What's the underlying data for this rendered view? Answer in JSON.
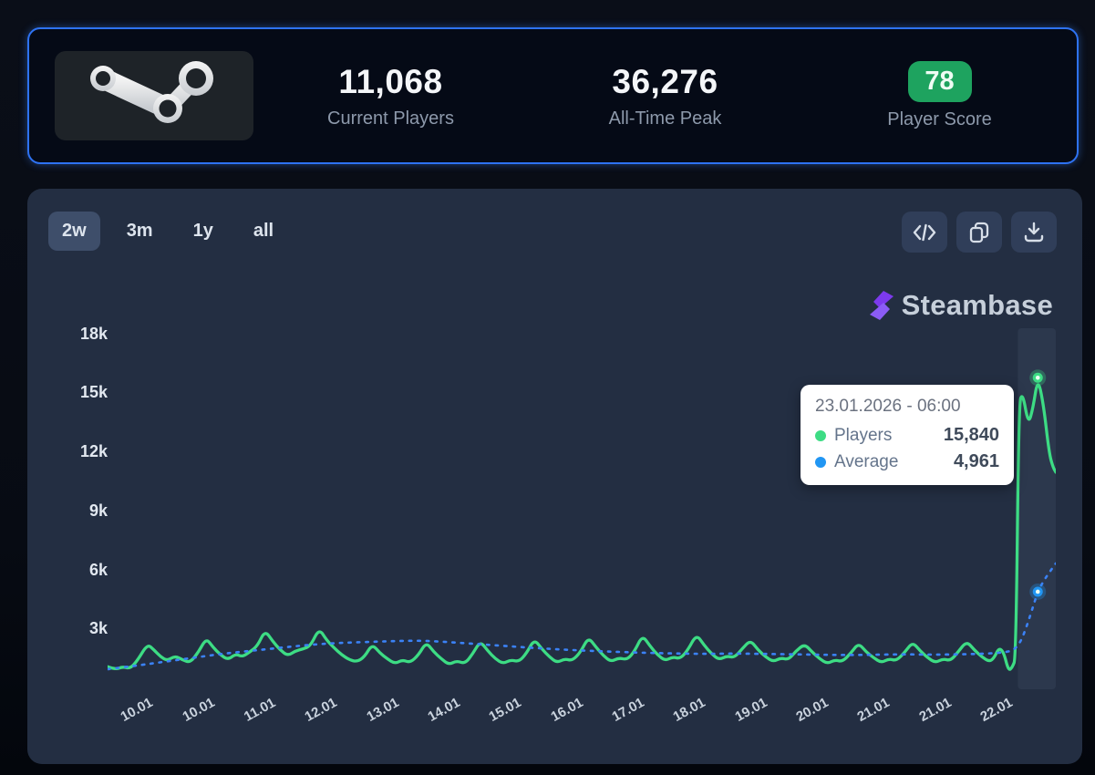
{
  "header": {
    "current_players": "11,068",
    "current_players_label": "Current Players",
    "all_time_peak": "36,276",
    "all_time_peak_label": "All-Time Peak",
    "player_score": "78",
    "player_score_label": "Player Score",
    "score_color": "#1ea35f"
  },
  "toolbar": {
    "ranges": [
      "2w",
      "3m",
      "1y",
      "all"
    ],
    "active_range": "2w",
    "icon_buttons": [
      "embed-code",
      "copy",
      "download"
    ]
  },
  "branding": {
    "logo_text": "Steambase",
    "logo_color": "#7c3aed"
  },
  "tooltip": {
    "date": "23.01.2026 - 06:00",
    "rows": [
      {
        "label": "Players",
        "value": "15,840",
        "color": "#3ddc84"
      },
      {
        "label": "Average",
        "value": "4,961",
        "color": "#2196f3"
      }
    ]
  },
  "chart_data": {
    "type": "line",
    "title": "",
    "xlabel": "",
    "ylabel": "",
    "ylim": [
      0,
      18000
    ],
    "grid": false,
    "legend": "tooltip-only",
    "y_ticks": [
      {
        "label": "18k",
        "value": 18000
      },
      {
        "label": "15k",
        "value": 15000
      },
      {
        "label": "12k",
        "value": 12000
      },
      {
        "label": "9k",
        "value": 9000
      },
      {
        "label": "6k",
        "value": 6000
      },
      {
        "label": "3k",
        "value": 3000
      }
    ],
    "x_ticks": [
      "10.01",
      "10.01",
      "11.01",
      "12.01",
      "13.01",
      "14.01",
      "15.01",
      "16.01",
      "17.01",
      "18.01",
      "19.01",
      "20.01",
      "21.01",
      "21.01",
      "22.01"
    ],
    "hover_band": {
      "from_pct": 96,
      "to_pct": 100
    },
    "hover_markers": [
      {
        "series": "Players",
        "x_pct": 98.1,
        "value": 15840,
        "color": "#3ddc84"
      },
      {
        "series": "Average",
        "x_pct": 98.1,
        "value": 4961,
        "color": "#2196f3"
      }
    ],
    "series": [
      {
        "name": "Players",
        "color": "#3ddc84",
        "style": "solid",
        "points": [
          [
            0,
            1150
          ],
          [
            0.8,
            1000
          ],
          [
            1.6,
            1150
          ],
          [
            2.4,
            1050
          ],
          [
            3.2,
            1500
          ],
          [
            4.2,
            2300
          ],
          [
            4.9,
            2000
          ],
          [
            5.6,
            1650
          ],
          [
            6.3,
            1450
          ],
          [
            7.1,
            1700
          ],
          [
            7.9,
            1500
          ],
          [
            8.7,
            1350
          ],
          [
            9.6,
            1900
          ],
          [
            10.4,
            2600
          ],
          [
            11.1,
            2150
          ],
          [
            11.9,
            1750
          ],
          [
            12.7,
            1500
          ],
          [
            13.5,
            1800
          ],
          [
            14.2,
            1650
          ],
          [
            15.0,
            1900
          ],
          [
            15.8,
            2200
          ],
          [
            16.6,
            3000
          ],
          [
            17.4,
            2450
          ],
          [
            18.2,
            2000
          ],
          [
            19.0,
            1700
          ],
          [
            19.8,
            1950
          ],
          [
            20.6,
            2050
          ],
          [
            21.4,
            2200
          ],
          [
            22.3,
            3100
          ],
          [
            23.1,
            2500
          ],
          [
            23.9,
            2100
          ],
          [
            24.7,
            1750
          ],
          [
            25.5,
            1500
          ],
          [
            26.3,
            1400
          ],
          [
            27.1,
            1650
          ],
          [
            27.9,
            2300
          ],
          [
            28.7,
            1850
          ],
          [
            29.5,
            1550
          ],
          [
            30.3,
            1300
          ],
          [
            31.1,
            1500
          ],
          [
            31.9,
            1350
          ],
          [
            32.8,
            1750
          ],
          [
            33.6,
            2400
          ],
          [
            34.4,
            1900
          ],
          [
            35.2,
            1550
          ],
          [
            36.0,
            1250
          ],
          [
            36.8,
            1450
          ],
          [
            37.7,
            1300
          ],
          [
            38.5,
            1800
          ],
          [
            39.3,
            2450
          ],
          [
            40.1,
            1950
          ],
          [
            40.9,
            1550
          ],
          [
            41.7,
            1300
          ],
          [
            42.5,
            1500
          ],
          [
            43.4,
            1400
          ],
          [
            44.2,
            1850
          ],
          [
            45.0,
            2550
          ],
          [
            45.8,
            2050
          ],
          [
            46.6,
            1650
          ],
          [
            47.4,
            1350
          ],
          [
            48.2,
            1550
          ],
          [
            49.0,
            1450
          ],
          [
            49.9,
            1900
          ],
          [
            50.7,
            2650
          ],
          [
            51.5,
            2150
          ],
          [
            52.3,
            1700
          ],
          [
            53.1,
            1400
          ],
          [
            53.9,
            1600
          ],
          [
            54.8,
            1500
          ],
          [
            55.6,
            1950
          ],
          [
            56.4,
            2750
          ],
          [
            57.2,
            2200
          ],
          [
            58.0,
            1750
          ],
          [
            58.8,
            1450
          ],
          [
            59.6,
            1650
          ],
          [
            60.4,
            1550
          ],
          [
            61.2,
            2000
          ],
          [
            62.1,
            2800
          ],
          [
            62.9,
            2250
          ],
          [
            63.7,
            1800
          ],
          [
            64.5,
            1500
          ],
          [
            65.3,
            1700
          ],
          [
            66.1,
            1600
          ],
          [
            67.0,
            2100
          ],
          [
            67.8,
            2500
          ],
          [
            68.6,
            2000
          ],
          [
            69.4,
            1650
          ],
          [
            70.2,
            1400
          ],
          [
            71.0,
            1600
          ],
          [
            71.8,
            1500
          ],
          [
            72.6,
            1950
          ],
          [
            73.5,
            2300
          ],
          [
            74.3,
            1900
          ],
          [
            75.1,
            1550
          ],
          [
            75.9,
            1300
          ],
          [
            76.7,
            1500
          ],
          [
            77.5,
            1400
          ],
          [
            78.4,
            1850
          ],
          [
            79.2,
            2350
          ],
          [
            80.0,
            1900
          ],
          [
            80.8,
            1600
          ],
          [
            81.6,
            1350
          ],
          [
            82.4,
            1550
          ],
          [
            83.2,
            1450
          ],
          [
            84.1,
            1900
          ],
          [
            84.9,
            2400
          ],
          [
            85.7,
            1950
          ],
          [
            86.5,
            1600
          ],
          [
            87.3,
            1350
          ],
          [
            88.1,
            1550
          ],
          [
            88.9,
            1450
          ],
          [
            89.7,
            1900
          ],
          [
            90.6,
            2450
          ],
          [
            91.4,
            2000
          ],
          [
            92.2,
            1650
          ],
          [
            93.0,
            1400
          ],
          [
            93.5,
            1600
          ],
          [
            94.0,
            2100
          ],
          [
            94.5,
            1900
          ],
          [
            95.0,
            950
          ],
          [
            95.4,
            1100
          ],
          [
            95.8,
            1600
          ],
          [
            96.1,
            14500
          ],
          [
            96.5,
            15100
          ],
          [
            97.1,
            13450
          ],
          [
            97.6,
            14300
          ],
          [
            98.1,
            15840
          ],
          [
            98.7,
            14500
          ],
          [
            99.3,
            12000
          ],
          [
            99.7,
            11300
          ],
          [
            100,
            11040
          ]
        ]
      },
      {
        "name": "Average",
        "color": "#3b82f6",
        "style": "dashed",
        "points": [
          [
            0,
            1020
          ],
          [
            3,
            1200
          ],
          [
            6,
            1400
          ],
          [
            9,
            1600
          ],
          [
            12,
            1800
          ],
          [
            15,
            1950
          ],
          [
            18,
            2100
          ],
          [
            21,
            2250
          ],
          [
            24,
            2350
          ],
          [
            27,
            2400
          ],
          [
            30,
            2450
          ],
          [
            33,
            2480
          ],
          [
            36,
            2400
          ],
          [
            39,
            2300
          ],
          [
            42,
            2200
          ],
          [
            45,
            2100
          ],
          [
            48,
            2020
          ],
          [
            51,
            1950
          ],
          [
            54,
            1900
          ],
          [
            57,
            1850
          ],
          [
            60,
            1820
          ],
          [
            63,
            1800
          ],
          [
            66,
            1820
          ],
          [
            69,
            1800
          ],
          [
            72,
            1780
          ],
          [
            75,
            1760
          ],
          [
            78,
            1740
          ],
          [
            81,
            1760
          ],
          [
            84,
            1780
          ],
          [
            87,
            1760
          ],
          [
            90,
            1780
          ],
          [
            92,
            1800
          ],
          [
            94,
            1850
          ],
          [
            95.5,
            1950
          ],
          [
            96.3,
            2400
          ],
          [
            97,
            3300
          ],
          [
            97.6,
            4200
          ],
          [
            98.1,
            4961
          ],
          [
            98.7,
            5500
          ],
          [
            99.4,
            6000
          ],
          [
            100,
            6400
          ]
        ]
      }
    ]
  }
}
